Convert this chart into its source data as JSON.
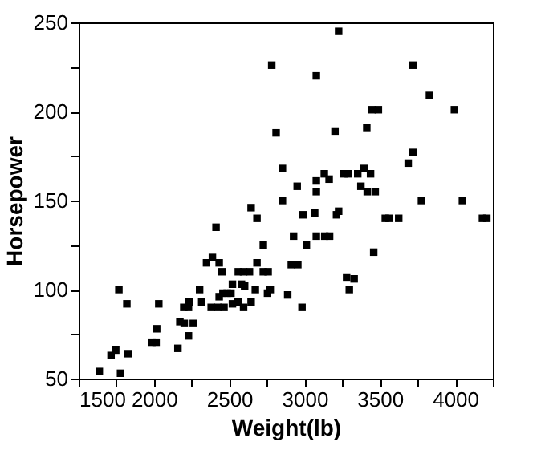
{
  "chart_data": {
    "type": "scatter",
    "xlabel": "Weight(lb)",
    "ylabel": "Horsepower",
    "marker": "square",
    "grid": false,
    "xlim": [
      1500,
      4250
    ],
    "ylim": [
      50,
      250
    ],
    "xticks": [
      1500,
      {
        "value": 1750,
        "label": null
      },
      2000,
      {
        "value": 2250,
        "label": null
      },
      2500,
      {
        "value": 2750,
        "label": null
      },
      3000,
      {
        "value": 3250,
        "label": null
      },
      3500,
      {
        "value": 3750,
        "label": null
      },
      4000,
      {
        "value": 4250,
        "label": null
      }
    ],
    "yticks": [
      50,
      {
        "value": 75,
        "label": null
      },
      100,
      {
        "value": 125,
        "label": null
      },
      150,
      {
        "value": 175,
        "label": null
      },
      200,
      {
        "value": 225,
        "label": null
      },
      250
    ],
    "series": [
      {
        "color": "#000000",
        "x": [
          1637,
          1778,
          1715,
          1746,
          1828,
          1767,
          1820,
          1986,
          2014,
          2018,
          2032,
          2159,
          2172,
          2201,
          2261,
          2229,
          2198,
          2229,
          2233,
          2303,
          2317,
          2349,
          2388,
          2433,
          2412,
          2451,
          2380,
          2423,
          2465,
          2433,
          2458,
          2486,
          2511,
          2521,
          2521,
          2557,
          2595,
          2560,
          2581,
          2602,
          2595,
          2634,
          2645,
          2645,
          2684,
          2684,
          2673,
          2726,
          2726,
          2758,
          2754,
          2772,
          2782,
          2811,
          2853,
          2853,
          2888,
          2927,
          2912,
          2955,
          2951,
          3226,
          3078,
          3720,
          3829,
          3995,
          3448,
          3490,
          3202,
          3413,
          3720,
          3688,
          3131,
          3078,
          3163,
          3261,
          3290,
          3353,
          3395,
          3438,
          3374,
          3416,
          3469,
          3078,
          3776,
          4048,
          2990,
          3067,
          3212,
          3226,
          3536,
          3561,
          3625,
          4181,
          4210,
          3012,
          3078,
          3134,
          3166,
          3459,
          3279,
          3329,
          3297,
          2983
        ],
        "values": [
          54,
          53,
          63,
          66,
          64,
          100,
          92,
          70,
          70,
          78,
          92,
          67,
          82,
          81,
          81,
          74,
          90,
          90,
          93,
          100,
          93,
          115,
          118,
          115,
          135,
          110,
          90,
          90,
          90,
          96,
          98,
          98,
          98,
          103,
          92,
          93,
          90,
          110,
          103,
          102,
          110,
          110,
          93,
          146,
          140,
          115,
          100,
          125,
          110,
          110,
          98,
          100,
          226,
          188,
          168,
          150,
          97,
          130,
          114,
          114,
          158,
          245,
          220,
          226,
          209,
          201,
          201,
          201,
          189,
          191,
          177,
          171,
          165,
          161,
          162,
          165,
          165,
          165,
          168,
          165,
          158,
          155,
          155,
          155,
          150,
          150,
          142,
          143,
          142,
          144,
          140,
          140,
          140,
          140,
          140,
          125,
          130,
          130,
          130,
          121,
          107,
          106,
          100,
          90
        ]
      }
    ]
  }
}
